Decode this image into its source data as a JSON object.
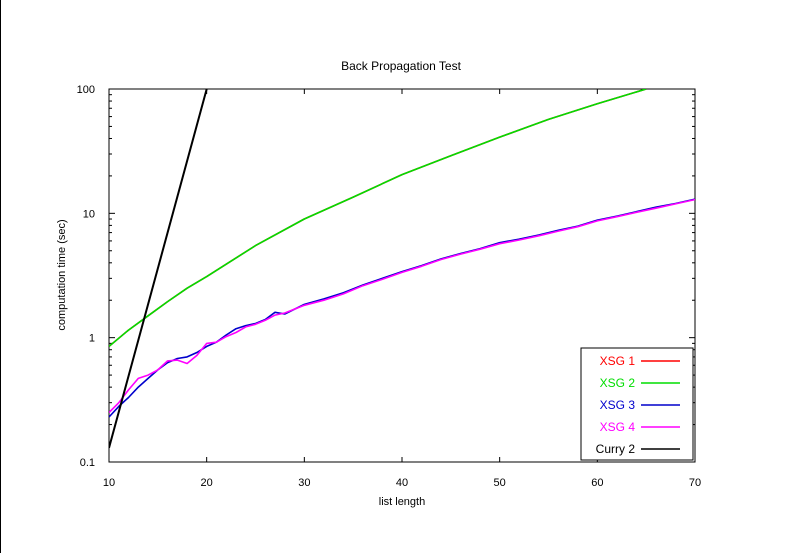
{
  "chart_data": {
    "type": "line",
    "title": "Back Propagation Test",
    "xlabel": "list length",
    "ylabel": "computation time (sec)",
    "xlim": [
      10,
      70
    ],
    "ylim": [
      0.1,
      100
    ],
    "yscale": "log",
    "xticks": [
      10,
      20,
      30,
      40,
      50,
      60,
      70
    ],
    "yticks": [
      {
        "value": 0.1,
        "label": "0.1"
      },
      {
        "value": 1,
        "label": "1"
      },
      {
        "value": 10,
        "label": "10"
      },
      {
        "value": 100,
        "label": "100"
      }
    ],
    "grid": false,
    "legend": "bottom-right",
    "series": [
      {
        "name": "XSG 1",
        "color": "#ff0000",
        "x": [
          10,
          12,
          14,
          16,
          18,
          20,
          22,
          25,
          30,
          35,
          40,
          45,
          50,
          55,
          60,
          65
        ],
        "y": [
          0.85,
          1.15,
          1.5,
          1.95,
          2.5,
          3.1,
          3.9,
          5.5,
          9.0,
          13.5,
          20.5,
          29,
          41,
          57,
          76,
          100
        ]
      },
      {
        "name": "XSG 2",
        "color": "#00dd00",
        "x": [
          10,
          12,
          14,
          16,
          18,
          20,
          22,
          25,
          30,
          35,
          40,
          45,
          50,
          55,
          60,
          65
        ],
        "y": [
          0.85,
          1.15,
          1.5,
          1.95,
          2.5,
          3.1,
          3.9,
          5.5,
          9.0,
          13.5,
          20.5,
          29,
          41,
          57,
          76,
          100
        ]
      },
      {
        "name": "XSG 3",
        "color": "#0000cc",
        "x": [
          10,
          11,
          12,
          13,
          14,
          15,
          16,
          17,
          18,
          19,
          20,
          21,
          22,
          23,
          24,
          25,
          26,
          27,
          28,
          30,
          32,
          34,
          36,
          38,
          40,
          42,
          44,
          46,
          48,
          50,
          52,
          54,
          56,
          58,
          60,
          62,
          64,
          66,
          68,
          70
        ],
        "y": [
          0.23,
          0.28,
          0.33,
          0.4,
          0.47,
          0.55,
          0.63,
          0.68,
          0.7,
          0.76,
          0.85,
          0.92,
          1.05,
          1.18,
          1.25,
          1.3,
          1.4,
          1.6,
          1.55,
          1.85,
          2.05,
          2.3,
          2.65,
          3.0,
          3.4,
          3.8,
          4.3,
          4.75,
          5.2,
          5.8,
          6.2,
          6.7,
          7.3,
          7.9,
          8.8,
          9.5,
          10.3,
          11.2,
          12.0,
          13.0
        ]
      },
      {
        "name": "XSG 4",
        "color": "#ff00ff",
        "x": [
          10,
          11,
          12,
          13,
          14,
          15,
          16,
          17,
          18,
          19,
          20,
          21,
          22,
          23,
          24,
          25,
          26,
          27,
          28,
          30,
          32,
          34,
          36,
          38,
          40,
          42,
          44,
          46,
          48,
          50,
          52,
          54,
          56,
          58,
          60,
          62,
          64,
          66,
          68,
          70
        ],
        "y": [
          0.25,
          0.3,
          0.38,
          0.47,
          0.5,
          0.55,
          0.65,
          0.66,
          0.62,
          0.72,
          0.9,
          0.92,
          1.02,
          1.1,
          1.22,
          1.28,
          1.38,
          1.52,
          1.58,
          1.82,
          2.0,
          2.25,
          2.62,
          2.95,
          3.35,
          3.75,
          4.25,
          4.7,
          5.15,
          5.7,
          6.1,
          6.6,
          7.2,
          7.8,
          8.7,
          9.4,
          10.2,
          11.0,
          11.9,
          12.9
        ]
      },
      {
        "name": "Curry 2",
        "color": "#000000",
        "x": [
          10,
          20
        ],
        "y": [
          0.13,
          100
        ]
      }
    ]
  }
}
